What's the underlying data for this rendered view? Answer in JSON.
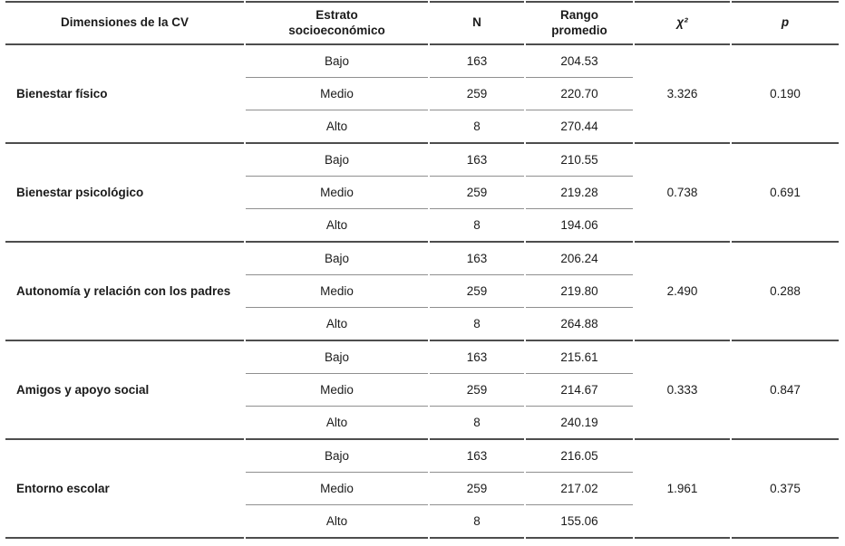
{
  "table": {
    "headers": {
      "dimensiones": "Dimensiones de la CV",
      "estrato": "Estrato\nsocioeconómico",
      "n": "N",
      "rango": "Rango\npromedio",
      "chi2": "χ²",
      "p": "p"
    },
    "blocks": [
      {
        "dimension": "Bienestar físico",
        "chi2": "3.326",
        "p": "0.190",
        "strata": [
          {
            "estrato": "Bajo",
            "n": "163",
            "rango": "204.53"
          },
          {
            "estrato": "Medio",
            "n": "259",
            "rango": "220.70"
          },
          {
            "estrato": "Alto",
            "n": "8",
            "rango": "270.44"
          }
        ]
      },
      {
        "dimension": "Bienestar psicológico",
        "chi2": "0.738",
        "p": "0.691",
        "strata": [
          {
            "estrato": "Bajo",
            "n": "163",
            "rango": "210.55"
          },
          {
            "estrato": "Medio",
            "n": "259",
            "rango": "219.28"
          },
          {
            "estrato": "Alto",
            "n": "8",
            "rango": "194.06"
          }
        ]
      },
      {
        "dimension": "Autonomía y relación con los padres",
        "chi2": "2.490",
        "p": "0.288",
        "strata": [
          {
            "estrato": "Bajo",
            "n": "163",
            "rango": "206.24"
          },
          {
            "estrato": "Medio",
            "n": "259",
            "rango": "219.80"
          },
          {
            "estrato": "Alto",
            "n": "8",
            "rango": "264.88"
          }
        ]
      },
      {
        "dimension": "Amigos y apoyo social",
        "chi2": "0.333",
        "p": "0.847",
        "strata": [
          {
            "estrato": "Bajo",
            "n": "163",
            "rango": "215.61"
          },
          {
            "estrato": "Medio",
            "n": "259",
            "rango": "214.67"
          },
          {
            "estrato": "Alto",
            "n": "8",
            "rango": "240.19"
          }
        ]
      },
      {
        "dimension": "Entorno escolar",
        "chi2": "1.961",
        "p": "0.375",
        "strata": [
          {
            "estrato": "Bajo",
            "n": "163",
            "rango": "216.05"
          },
          {
            "estrato": "Medio",
            "n": "259",
            "rango": "217.02"
          },
          {
            "estrato": "Alto",
            "n": "8",
            "rango": "155.06"
          }
        ]
      }
    ]
  }
}
